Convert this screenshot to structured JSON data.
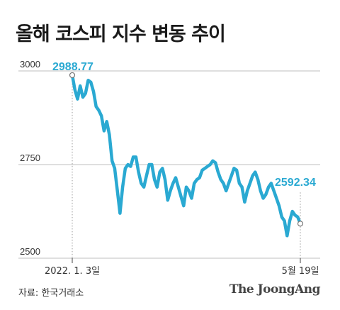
{
  "title": "올해 코스피 지수 변동 추이",
  "source": "자료: 한국거래소",
  "brand": "The JoongAng",
  "colors": {
    "line": "#2aa9d2",
    "label": "#2aa9d2",
    "grid": "#bfbfbf",
    "text": "#333333"
  },
  "chart_data": {
    "type": "line",
    "title": "올해 코스피 지수 변동 추이",
    "xlabel": "",
    "ylabel": "",
    "ylim": [
      2500,
      3000
    ],
    "yticks": [
      3000,
      2750,
      2500
    ],
    "xtick_labels": [
      "2022. 1. 3일",
      "5월 19일"
    ],
    "annotations": [
      {
        "text": "2988.77",
        "index": 0
      },
      {
        "text": "2592.34",
        "index": "last"
      }
    ],
    "series": [
      {
        "values": [
          2988.77,
          2950,
          2925,
          2960,
          2930,
          2940,
          2975,
          2970,
          2945,
          2905,
          2895,
          2880,
          2840,
          2865,
          2830,
          2760,
          2740,
          2680,
          2620,
          2690,
          2740,
          2750,
          2745,
          2770,
          2770,
          2730,
          2700,
          2690,
          2720,
          2750,
          2750,
          2710,
          2690,
          2730,
          2740,
          2710,
          2655,
          2680,
          2700,
          2715,
          2690,
          2665,
          2640,
          2690,
          2680,
          2660,
          2700,
          2710,
          2715,
          2735,
          2740,
          2745,
          2750,
          2760,
          2755,
          2730,
          2710,
          2700,
          2680,
          2700,
          2720,
          2740,
          2735,
          2700,
          2690,
          2650,
          2680,
          2700,
          2720,
          2730,
          2710,
          2680,
          2660,
          2670,
          2690,
          2700,
          2680,
          2660,
          2640,
          2610,
          2600,
          2560,
          2600,
          2625,
          2615,
          2610,
          2592.34
        ]
      }
    ]
  }
}
